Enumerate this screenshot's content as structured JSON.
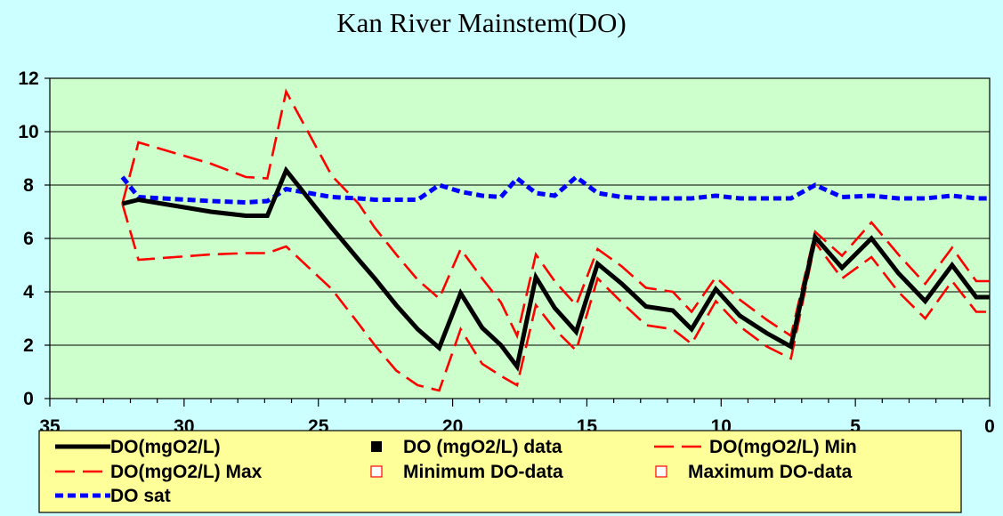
{
  "chart_data": {
    "type": "line",
    "title": "Kan River Mainstem(DO)",
    "xlabel": "",
    "ylabel": "",
    "xlim": [
      35,
      0
    ],
    "ylim": [
      0,
      12
    ],
    "xticks": [
      "35",
      "30",
      "25",
      "20",
      "15",
      "10",
      "5",
      "0"
    ],
    "yticks": [
      "0",
      "2",
      "4",
      "6",
      "8",
      "10",
      "12"
    ],
    "grid": "horizontal",
    "plot_background": "#ccffcc",
    "page_background": "#ccffff",
    "legend_background": "#ffff99",
    "legend_position": "bottom",
    "series": [
      {
        "name": "DO(mgO2/L)",
        "style": "solid",
        "color": "#000000",
        "x": [
          32.3,
          31.7,
          29.0,
          27.7,
          26.9,
          26.2,
          24.5,
          23.5,
          22.9,
          22.1,
          21.3,
          20.5,
          19.7,
          18.9,
          18.2,
          17.6,
          16.9,
          16.2,
          15.4,
          14.6,
          13.7,
          12.8,
          11.8,
          11.1,
          10.2,
          9.3,
          8.3,
          7.4,
          6.5,
          5.5,
          4.4,
          3.4,
          2.4,
          1.4,
          0.5,
          0.0
        ],
        "y": [
          7.3,
          7.45,
          7.0,
          6.85,
          6.85,
          8.55,
          6.4,
          5.2,
          4.5,
          3.5,
          2.6,
          1.9,
          3.95,
          2.65,
          2.0,
          1.2,
          4.55,
          3.4,
          2.5,
          5.05,
          4.3,
          3.45,
          3.3,
          2.6,
          4.1,
          3.1,
          2.45,
          1.95,
          6.05,
          4.9,
          6.0,
          4.7,
          3.65,
          5.0,
          3.8,
          3.8
        ]
      },
      {
        "name": "DO (mgO2/L) data",
        "style": "marker",
        "marker": "filled-square",
        "color": "#000000",
        "x": [],
        "y": []
      },
      {
        "name": "DO(mgO2/L) Min",
        "style": "dashed",
        "color": "#ff0000",
        "x": [
          32.3,
          31.7,
          29.0,
          27.7,
          26.9,
          26.2,
          24.5,
          23.5,
          22.9,
          22.1,
          21.3,
          20.5,
          19.7,
          18.9,
          18.2,
          17.6,
          16.9,
          16.2,
          15.4,
          14.6,
          13.7,
          12.8,
          11.8,
          11.1,
          10.2,
          9.3,
          8.3,
          7.4,
          6.5,
          5.5,
          4.4,
          3.4,
          2.4,
          1.4,
          0.5,
          0.0
        ],
        "y": [
          7.3,
          5.2,
          5.4,
          5.45,
          5.45,
          5.7,
          4.1,
          2.8,
          2.0,
          1.05,
          0.5,
          0.3,
          2.6,
          1.3,
          0.85,
          0.5,
          3.5,
          2.6,
          1.8,
          4.5,
          3.6,
          2.75,
          2.6,
          2.05,
          3.65,
          2.7,
          1.95,
          1.5,
          5.85,
          4.5,
          5.3,
          4.0,
          3.0,
          4.4,
          3.25,
          3.25
        ]
      },
      {
        "name": "DO(mgO2/L) Max",
        "style": "dashed",
        "color": "#ff0000",
        "x": [
          32.3,
          31.7,
          29.0,
          27.7,
          26.9,
          26.2,
          24.5,
          23.5,
          22.9,
          22.1,
          21.3,
          20.5,
          19.7,
          18.9,
          18.2,
          17.6,
          16.9,
          16.2,
          15.4,
          14.6,
          13.7,
          12.8,
          11.8,
          11.1,
          10.2,
          9.3,
          8.3,
          7.4,
          6.5,
          5.5,
          4.4,
          3.4,
          2.4,
          1.4,
          0.5,
          0.0
        ],
        "y": [
          7.3,
          9.6,
          8.8,
          8.3,
          8.25,
          11.5,
          8.35,
          7.3,
          6.4,
          5.4,
          4.45,
          3.75,
          5.6,
          4.5,
          3.6,
          2.35,
          5.4,
          4.4,
          3.5,
          5.6,
          4.95,
          4.15,
          4.0,
          3.25,
          4.55,
          3.7,
          2.95,
          2.35,
          6.25,
          5.35,
          6.6,
          5.4,
          4.3,
          5.65,
          4.4,
          4.4
        ]
      },
      {
        "name": "Minimum DO-data",
        "style": "marker",
        "marker": "open-square",
        "color": "#ff0000",
        "x": [],
        "y": []
      },
      {
        "name": "Maximum DO-data",
        "style": "marker",
        "marker": "open-square",
        "color": "#ff0000",
        "x": [],
        "y": []
      },
      {
        "name": "DO sat",
        "style": "dotted",
        "color": "#0000ff",
        "x": [
          32.3,
          31.7,
          29.0,
          27.7,
          26.9,
          26.2,
          24.5,
          23.5,
          22.9,
          22.1,
          21.3,
          20.5,
          19.7,
          18.9,
          18.2,
          17.6,
          16.9,
          16.2,
          15.4,
          14.6,
          13.7,
          12.8,
          11.8,
          11.1,
          10.2,
          9.3,
          8.3,
          7.4,
          6.5,
          5.5,
          4.4,
          3.4,
          2.4,
          1.4,
          0.5,
          0.0
        ],
        "y": [
          8.3,
          7.55,
          7.4,
          7.35,
          7.4,
          7.85,
          7.55,
          7.5,
          7.45,
          7.45,
          7.45,
          8.0,
          7.75,
          7.6,
          7.55,
          8.25,
          7.7,
          7.6,
          8.3,
          7.7,
          7.55,
          7.5,
          7.5,
          7.5,
          7.6,
          7.5,
          7.5,
          7.5,
          8.0,
          7.55,
          7.6,
          7.5,
          7.5,
          7.6,
          7.5,
          7.5
        ]
      }
    ]
  }
}
